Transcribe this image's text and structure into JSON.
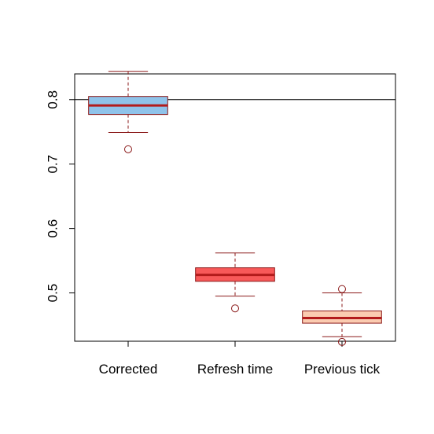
{
  "chart_data": {
    "type": "boxplot",
    "title": "",
    "xlabel": "",
    "ylabel": "",
    "categories": [
      "Corrected",
      "Refresh time",
      "Previous tick"
    ],
    "ylim": [
      0.425,
      0.84
    ],
    "yticks": [
      0.5,
      0.6,
      0.7,
      0.8
    ],
    "ytick_labels": [
      "0.5",
      "0.6",
      "0.7",
      "0.8"
    ],
    "reference_line": 0.8,
    "boxes": [
      {
        "category": "Corrected",
        "whisker_low": 0.749,
        "q1": 0.777,
        "median": 0.791,
        "q3": 0.805,
        "whisker_high": 0.844,
        "outliers": [
          0.723
        ],
        "fill": "#8fc3ea"
      },
      {
        "category": "Refresh time",
        "whisker_low": 0.495,
        "q1": 0.518,
        "median": 0.528,
        "q3": 0.539,
        "whisker_high": 0.562,
        "outliers": [
          0.476
        ],
        "fill": "#f85959"
      },
      {
        "category": "Previous tick",
        "whisker_low": 0.432,
        "q1": 0.453,
        "median": 0.461,
        "q3": 0.472,
        "whisker_high": 0.5,
        "outliers": [
          0.506,
          0.424
        ],
        "fill": "#fbcbb0"
      }
    ],
    "colors": {
      "stroke": "#8b1a1a",
      "median": "#b31b1b",
      "axis": "#000000"
    }
  }
}
